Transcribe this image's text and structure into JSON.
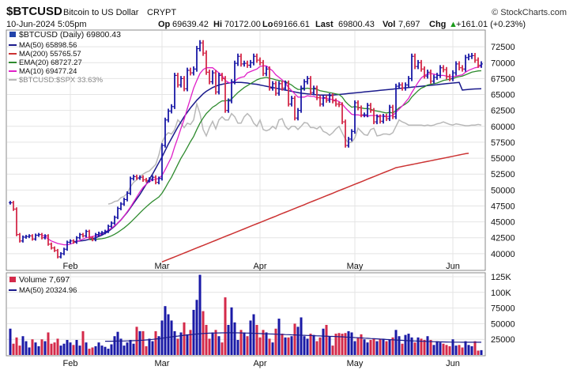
{
  "header": {
    "symbol": "$BTCUSD",
    "name": "Bitcoin to US Dollar",
    "exchange": "CRYPT",
    "logo": "© StockCharts.com",
    "timestamp": "10-Jun-2024 5:05pm",
    "op_label": "Op",
    "op": "69639.42",
    "hi_label": "Hi",
    "hi": "70172.00",
    "lo_label": "Lo",
    "lo": "69166.61",
    "last_label": "Last",
    "last": "69800.43",
    "vol_label": "Vol",
    "vol": "7,697",
    "chg_label": "Chg",
    "chg": "+161.01 (+0.23%)",
    "chg_arrow": "▲"
  },
  "legend": {
    "main": "$BTCUSD (Daily) 69800.43",
    "ma50": "MA(50) 65898.56",
    "ma200": "MA(200) 55765.57",
    "ema20": "EMA(20) 68727.27",
    "ma10": "MA(10) 69477.24",
    "rel": "$BTCUSD:$SPX 33.63%",
    "volume": "Volume 7,697",
    "vma50": "MA(50) 20324.96"
  },
  "colors": {
    "up": "#1a1aa6",
    "down": "#d42a4a",
    "ma50": "#1a1a8c",
    "ma200": "#cc3333",
    "ema20": "#2e8b2e",
    "ma10": "#e020c8",
    "rel": "#b8b8b8",
    "vol_ma": "#1a1a8c",
    "grid": "#e4e4e4"
  },
  "chart_data": {
    "type": "candlestick",
    "price_axis": {
      "min": 37500,
      "max": 75000,
      "ticks": [
        40000,
        42500,
        45000,
        47500,
        50000,
        52500,
        55000,
        57500,
        60000,
        62500,
        65000,
        67500,
        70000,
        72500
      ]
    },
    "price_tick_labels": [
      "40000",
      "42500",
      "45000",
      "47500",
      "50000",
      "52500",
      "55000",
      "57500",
      "60000",
      "62500",
      "65000",
      "67500",
      "70000",
      "72500"
    ],
    "volume_axis": {
      "min": 0,
      "max": 130000,
      "ticks": [
        25000,
        50000,
        75000,
        100000,
        125000
      ]
    },
    "volume_tick_labels": [
      "25000",
      "50000",
      "75000",
      "100K",
      "125K"
    ],
    "x_labels": [
      {
        "label": "Feb",
        "day": 19
      },
      {
        "label": "Mar",
        "day": 48
      },
      {
        "label": "Apr",
        "day": 79
      },
      {
        "label": "May",
        "day": 109
      },
      {
        "label": "Jun",
        "day": 140
      }
    ],
    "days": 150,
    "close": [
      48000,
      47000,
      43000,
      42000,
      42600,
      42700,
      42800,
      42300,
      42900,
      43000,
      42500,
      42800,
      41500,
      40900,
      40500,
      39500,
      40000,
      40700,
      41800,
      42000,
      41800,
      42500,
      43000,
      42800,
      43500,
      42500,
      42200,
      43000,
      43200,
      43300,
      43500,
      44300,
      44800,
      45700,
      47100,
      47800,
      48500,
      49500,
      51800,
      52100,
      51900,
      52000,
      51600,
      51500,
      51700,
      52000,
      51200,
      51800,
      57000,
      61000,
      62400,
      63100,
      68000,
      66500,
      67500,
      65900,
      68800,
      68400,
      69000,
      72200,
      73100,
      71500,
      68500,
      67000,
      68400,
      65400,
      68000,
      67500,
      62500,
      64000,
      67000,
      69900,
      71000,
      69800,
      69900,
      69600,
      70000,
      71000,
      70400,
      70000,
      68300,
      69000,
      66000,
      66700,
      65200,
      66700,
      66000,
      66800,
      63500,
      64400,
      61300,
      62500,
      66000,
      67000,
      67500,
      65300,
      66000,
      64500,
      63500,
      64500,
      64100,
      64800,
      64000,
      63500,
      63400,
      60700,
      57000,
      58000,
      59200,
      63700,
      62900,
      61800,
      61800,
      63300,
      62500,
      60700,
      61500,
      60800,
      61600,
      61200,
      63000,
      61500,
      66300,
      66500,
      66000,
      66500,
      67500,
      71000,
      69400,
      70000,
      69000,
      67900,
      68500,
      67100,
      67700,
      68000,
      69200,
      68900,
      67800,
      67500,
      68400,
      69800,
      69200,
      69000,
      70800,
      71000,
      71100,
      70400,
      69600,
      69800
    ],
    "ma50": [
      null,
      null,
      null,
      null,
      null,
      null,
      null,
      null,
      null,
      null,
      null,
      null,
      null,
      null,
      null,
      null,
      null,
      null,
      null,
      null,
      41900,
      41950,
      42000,
      42050,
      42150,
      42250,
      42350,
      42500,
      42700,
      42900,
      43200,
      43500,
      43900,
      44300,
      44800,
      45300,
      45900,
      46500,
      47200,
      47900,
      48600,
      49300,
      50100,
      50900,
      51700,
      52500,
      53400,
      54300,
      55200,
      56200,
      57200,
      58100,
      59000,
      59900,
      60700,
      61500,
      62200,
      62900,
      63500,
      64100,
      64600,
      65100,
      65500,
      65800,
      66100,
      66300,
      66500,
      66600,
      66700,
      66800,
      66850,
      66900,
      66900,
      66900,
      66850,
      66800,
      66700,
      66650,
      66600,
      66500,
      66400,
      66300,
      66200,
      66100,
      66000,
      65900,
      65800,
      65700,
      65600,
      65500,
      65400,
      65300,
      65200,
      65150,
      65100,
      65050,
      65000,
      64950,
      64900,
      64900,
      64900,
      64900,
      64900,
      64950,
      65000,
      65050,
      65100,
      65150,
      65200,
      65250,
      65300,
      65350,
      65400,
      65450,
      65500,
      65550,
      65600,
      65650,
      65700,
      65750,
      65800,
      65850,
      65900,
      65950,
      66000,
      66050,
      66100,
      66150,
      66200,
      66250,
      66300,
      66350,
      66400,
      66450,
      66500,
      66550,
      66600,
      66650,
      66700,
      66750,
      66800,
      66850,
      66900,
      65700,
      65750,
      65800,
      65850,
      65870,
      65880,
      65898.56
    ],
    "ma200": [
      null,
      null,
      null,
      null,
      null,
      null,
      null,
      null,
      null,
      null,
      null,
      null,
      null,
      null,
      null,
      null,
      null,
      null,
      null,
      null,
      null,
      null,
      null,
      null,
      null,
      null,
      null,
      null,
      null,
      null,
      null,
      null,
      null,
      null,
      null,
      null,
      null,
      null,
      null,
      null,
      null,
      null,
      null,
      null,
      null,
      null,
      null,
      null,
      38700,
      38900,
      39100,
      39300,
      39500,
      39700,
      39900,
      40100,
      40300,
      40500,
      40700,
      40900,
      41100,
      41300,
      41500,
      41700,
      41900,
      42100,
      42300,
      42500,
      42700,
      42900,
      43100,
      43300,
      43500,
      43700,
      43900,
      44100,
      44300,
      44500,
      44700,
      44900,
      45100,
      45300,
      45500,
      45700,
      45900,
      46100,
      46300,
      46500,
      46700,
      46900,
      47100,
      47300,
      47500,
      47700,
      47900,
      48100,
      48300,
      48500,
      48700,
      48900,
      49100,
      49300,
      49500,
      49700,
      49900,
      50100,
      50300,
      50500,
      50700,
      50900,
      51100,
      51300,
      51500,
      51700,
      51900,
      52100,
      52300,
      52500,
      52700,
      52900,
      53100,
      53300,
      53500,
      53600,
      53700,
      53800,
      53900,
      54000,
      54100,
      54200,
      54300,
      54400,
      54500,
      54600,
      54700,
      54800,
      54900,
      55000,
      55100,
      55200,
      55300,
      55400,
      55500,
      55600,
      55700,
      55765.57
    ],
    "ema20": [
      null,
      null,
      null,
      null,
      null,
      null,
      null,
      null,
      null,
      null,
      null,
      null,
      null,
      null,
      null,
      null,
      null,
      null,
      null,
      null,
      null,
      null,
      null,
      null,
      null,
      42200,
      42200,
      42250,
      42300,
      42350,
      42450,
      42600,
      42800,
      43050,
      43350,
      43700,
      44050,
      44450,
      44900,
      45400,
      45900,
      46400,
      46900,
      47350,
      47800,
      48200,
      48550,
      48900,
      49500,
      50300,
      51200,
      52000,
      53000,
      54000,
      55000,
      55800,
      56700,
      57600,
      58400,
      59500,
      60500,
      61300,
      62000,
      62500,
      63000,
      63300,
      63700,
      64000,
      64000,
      64100,
      64300,
      64800,
      65300,
      65700,
      66100,
      66400,
      66700,
      67000,
      67300,
      67500,
      67600,
      67700,
      67550,
      67450,
      67300,
      67200,
      67100,
      67050,
      66750,
      66500,
      66100,
      65800,
      65800,
      65900,
      66000,
      65900,
      65900,
      65800,
      65600,
      65500,
      65400,
      65300,
      65200,
      65100,
      65000,
      64600,
      63900,
      63400,
      63000,
      63100,
      63000,
      62900,
      62800,
      62800,
      62700,
      62500,
      62400,
      62300,
      62200,
      62100,
      62200,
      62100,
      62500,
      62900,
      63200,
      63500,
      63900,
      64600,
      65100,
      65600,
      66000,
      66200,
      66500,
      66600,
      66700,
      66800,
      67000,
      67200,
      67300,
      67400,
      67500,
      67700,
      67800,
      67900,
      68100,
      68300,
      68500,
      68600,
      68700,
      68727.27
    ],
    "ma10": [
      null,
      null,
      null,
      null,
      null,
      null,
      null,
      null,
      null,
      null,
      42900,
      42700,
      42300,
      42000,
      41800,
      41600,
      41500,
      41400,
      41400,
      41500,
      41700,
      41900,
      42100,
      42300,
      42500,
      42600,
      42700,
      42800,
      42900,
      43100,
      43400,
      43700,
      44000,
      44400,
      44800,
      45300,
      45900,
      46600,
      47300,
      48100,
      48900,
      49700,
      50400,
      50900,
      51300,
      51600,
      51700,
      51800,
      52300,
      53200,
      54200,
      55200,
      56800,
      58200,
      59700,
      61100,
      62800,
      64400,
      66000,
      67200,
      68300,
      68900,
      69200,
      69200,
      69200,
      68800,
      68400,
      68000,
      67200,
      66900,
      66800,
      67100,
      67500,
      67700,
      67800,
      68400,
      68600,
      68800,
      69000,
      69400,
      69500,
      69500,
      69100,
      68700,
      68100,
      67700,
      67300,
      66800,
      66100,
      65600,
      65100,
      64600,
      64600,
      64600,
      64800,
      64700,
      64700,
      64500,
      64500,
      64400,
      64400,
      64300,
      64200,
      64100,
      63900,
      63500,
      62900,
      62400,
      61900,
      61800,
      61800,
      61700,
      61700,
      61600,
      61700,
      61700,
      61700,
      61600,
      61600,
      61500,
      61600,
      61700,
      62200,
      62700,
      63200,
      63800,
      64400,
      65300,
      66100,
      66900,
      67600,
      68000,
      68200,
      68300,
      68200,
      68100,
      68000,
      68000,
      67900,
      67800,
      67800,
      67900,
      68000,
      68100,
      68500,
      68800,
      69000,
      69200,
      69300,
      69477.24
    ],
    "rel_line": [
      null,
      null,
      null,
      null,
      null,
      null,
      null,
      null,
      null,
      null,
      null,
      null,
      null,
      null,
      null,
      null,
      null,
      null,
      null,
      null,
      null,
      null,
      null,
      null,
      null,
      null,
      null,
      null,
      null,
      null,
      null,
      47800,
      47900,
      48200,
      48300,
      48800,
      49000,
      49500,
      50500,
      51200,
      51600,
      52000,
      52500,
      52800,
      53000,
      53500,
      54000,
      55500,
      57500,
      58500,
      59000,
      58800,
      59500,
      61000,
      60500,
      59800,
      60500,
      60300,
      61000,
      63500,
      62000,
      59500,
      58500,
      59800,
      60800,
      59600,
      61000,
      61500,
      61000,
      61000,
      62000,
      61500,
      60500,
      60500,
      61500,
      62000,
      61500,
      60500,
      60000,
      61000,
      59500,
      59300,
      59500,
      60000,
      59600,
      61000,
      61200,
      60000,
      59500,
      60000,
      60000,
      59500,
      60000,
      60600,
      60500,
      59800,
      59800,
      59600,
      60000,
      59200,
      59000,
      58600,
      59000,
      59600,
      60000,
      59000,
      58000,
      57400,
      57500,
      58200,
      59700,
      59200,
      58700,
      58600,
      59500,
      59700,
      58500,
      58600,
      58800,
      58800,
      58700,
      59000,
      60000,
      61000,
      60700,
      60500,
      60200,
      60200,
      60200,
      60200,
      60200,
      60100,
      60200,
      60100,
      60200,
      60400,
      60500,
      60700,
      60500,
      60300,
      60200,
      60400,
      60300,
      60200,
      60100,
      60100,
      60200,
      60200,
      60300,
      60200
    ],
    "volume": [
      42000,
      18000,
      28000,
      15000,
      30000,
      22000,
      12000,
      25000,
      20000,
      14000,
      25000,
      22000,
      36000,
      18000,
      20000,
      26000,
      15000,
      18000,
      24000,
      20000,
      16000,
      24000,
      15000,
      38000,
      20000,
      10000,
      12000,
      14000,
      20000,
      15000,
      13000,
      10000,
      17000,
      30000,
      37000,
      26000,
      15000,
      20000,
      24000,
      18000,
      45000,
      38000,
      38000,
      14000,
      26000,
      22000,
      38000,
      30000,
      55000,
      78000,
      65000,
      55000,
      38000,
      26000,
      36000,
      52000,
      33000,
      40000,
      72000,
      88000,
      128000,
      70000,
      48000,
      26000,
      36000,
      40000,
      30000,
      20000,
      92000,
      48000,
      76000,
      52000,
      24000,
      40000,
      36000,
      30000,
      55000,
      65000,
      48000,
      28000,
      40000,
      36000,
      26000,
      20000,
      42000,
      58000,
      34000,
      28000,
      28000,
      30000,
      50000,
      45000,
      60000,
      30000,
      26000,
      34000,
      32000,
      22000,
      28000,
      42000,
      48000,
      30000,
      15000,
      34000,
      35000,
      34000,
      35000,
      38000,
      36000,
      22000,
      28000,
      33000,
      25000,
      20000,
      24000,
      26000,
      22000,
      26000,
      26000,
      22000,
      24000,
      28000,
      40000,
      30000,
      18000,
      32000,
      34000,
      28000,
      20000,
      28000,
      26000,
      24000,
      30000,
      24000,
      16000,
      22000,
      20000,
      18000,
      16000,
      14000,
      25000,
      15000,
      16000,
      12000,
      22000,
      16000,
      14000,
      22000,
      7000,
      7697
    ],
    "vol_ma50": [
      null,
      null,
      null,
      null,
      null,
      null,
      null,
      null,
      null,
      null,
      null,
      null,
      null,
      null,
      null,
      null,
      null,
      null,
      null,
      null,
      null,
      null,
      null,
      null,
      null,
      null,
      null,
      null,
      null,
      null,
      22000,
      22000,
      22000,
      22100,
      22200,
      22300,
      22400,
      22500,
      22600,
      22800,
      23000,
      23300,
      23600,
      24000,
      24400,
      24900,
      25500,
      26100,
      26800,
      27500,
      28200,
      28900,
      29600,
      30200,
      30800,
      31400,
      32000,
      32500,
      33000,
      33500,
      34000,
      34300,
      34600,
      34800,
      35000,
      35100,
      35200,
      35300,
      35400,
      35500,
      35500,
      35400,
      35300,
      35200,
      35100,
      35000,
      34800,
      34600,
      34400,
      34200,
      34000,
      33800,
      33600,
      33400,
      33200,
      33000,
      32800,
      32600,
      32400,
      32200,
      32000,
      31800,
      31600,
      31400,
      31200,
      31000,
      30800,
      30600,
      30400,
      30200,
      30000,
      29800,
      29600,
      29400,
      29200,
      29000,
      28700,
      28400,
      28100,
      27800,
      27500,
      27200,
      26900,
      26600,
      26300,
      26000,
      25700,
      25400,
      25100,
      24800,
      24500,
      24200,
      23900,
      23600,
      23300,
      23000,
      22800,
      22600,
      22400,
      22200,
      22000,
      21800,
      21600,
      21400,
      21200,
      21000,
      20900,
      20800,
      20700,
      20600,
      20500,
      20450,
      20400,
      20380,
      20360,
      20340,
      20330,
      20326,
      20325,
      20324.96
    ]
  }
}
